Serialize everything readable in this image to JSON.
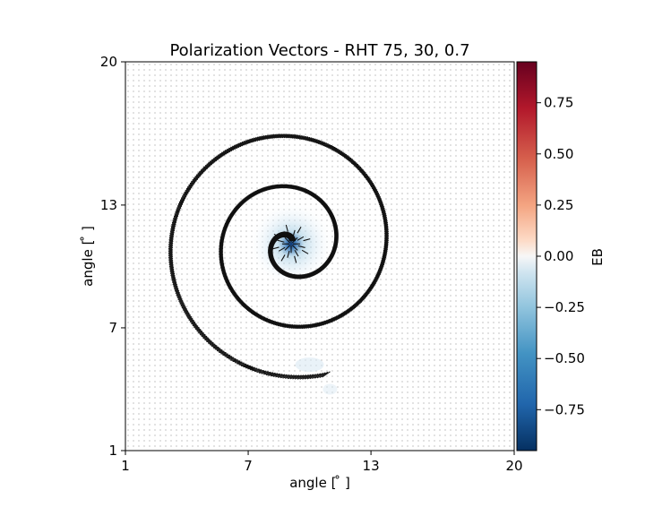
{
  "chart_data": {
    "type": "heatmap",
    "title": "Polarization Vectors - RHT 75, 30, 0.7",
    "xlabel": "angle [$^\\circ$]",
    "ylabel": "angle [$^\\circ$]",
    "xlabel_text": "angle [ ̊ ]",
    "ylabel_text": "angle [ ̊ ]",
    "xlim": [
      1,
      20
    ],
    "ylim": [
      1,
      20
    ],
    "xticks": [
      "1",
      "7",
      "13",
      "20"
    ],
    "yticks": [
      "1",
      "7",
      "13",
      "20"
    ],
    "colorbar": {
      "label": "EB",
      "range": [
        -0.95,
        0.95
      ],
      "ticks": [
        "0.75",
        "0.50",
        "0.25",
        "0.00",
        "−0.25",
        "−0.50",
        "−0.75"
      ],
      "tick_values": [
        0.75,
        0.5,
        0.25,
        0.0,
        -0.25,
        -0.5,
        -0.75
      ],
      "colormap": "RdBu_r"
    },
    "spiral": {
      "center": [
        9.1,
        11.1
      ],
      "turns": 2.6,
      "outer_radius": 6.6,
      "end_point": [
        11.0,
        4.0
      ]
    },
    "center_value": -0.9,
    "grid": false
  }
}
